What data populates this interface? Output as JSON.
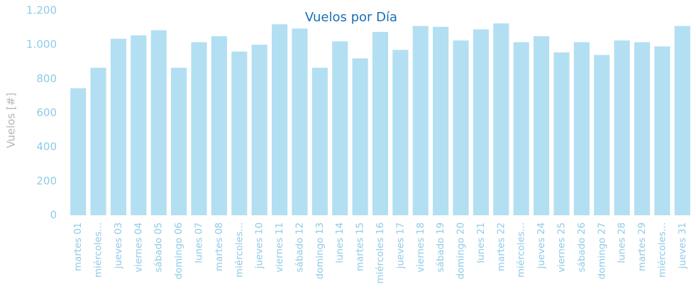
{
  "chart_data": {
    "type": "bar",
    "title": "Vuelos por Día",
    "y_label": "Vuelos [#]",
    "categories": [
      "martes 01",
      "miércoles...",
      "jueves 03",
      "viernes 04",
      "sábado 05",
      "domingo 06",
      "lunes 07",
      "martes 08",
      "miércoles...",
      "jueves 10",
      "viernes 11",
      "sábado 12",
      "domingo 13",
      "lunes 14",
      "martes 15",
      "miércoles 16",
      "jueves 17",
      "viernes 18",
      "sábado 19",
      "domingo 20",
      "lunes 21",
      "martes 22",
      "miércoles...",
      "jueves 24",
      "viernes 25",
      "sábado 26",
      "domingo 27",
      "lunes 28",
      "martes 29",
      "miércoles...",
      "jueves 31"
    ],
    "values": [
      745,
      865,
      1035,
      1055,
      1085,
      865,
      1015,
      1050,
      960,
      1000,
      1120,
      1095,
      865,
      1020,
      920,
      1075,
      970,
      1110,
      1105,
      1025,
      1090,
      1125,
      1015,
      1050,
      955,
      1015,
      940,
      1025,
      1015,
      990,
      1110
    ],
    "color": "#b3dff2",
    "ylim": [
      0,
      1200
    ],
    "yticks": [
      0,
      200,
      400,
      600,
      800,
      {
        "value": 1000,
        "label": "1.000"
      },
      {
        "value": 1200,
        "label": "1.200"
      }
    ],
    "grid": false
  }
}
